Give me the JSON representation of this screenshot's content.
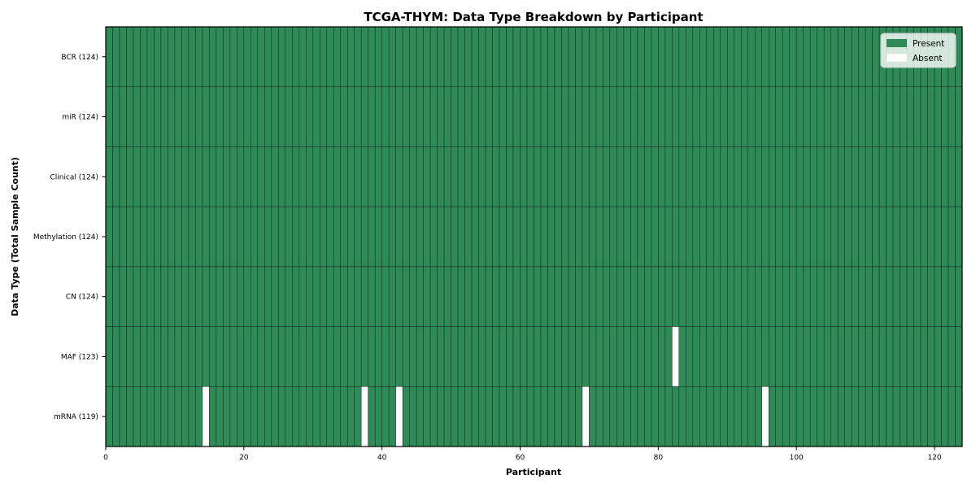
{
  "figure": {
    "kind": "matplotlib-heatmap-figure"
  },
  "chart_data": {
    "type": "heatmap",
    "title": "TCGA-THYM: Data Type Breakdown by Participant",
    "xlabel": "Participant",
    "ylabel": "Data Type (Total Sample Count)",
    "x_ticks": [
      0,
      20,
      40,
      60,
      80,
      100,
      120
    ],
    "x_range": [
      0,
      124
    ],
    "n_participants": 124,
    "rows": [
      {
        "label": "BCR (124)",
        "data_type": "BCR",
        "present_count": 124,
        "absent_participants": []
      },
      {
        "label": "miR (124)",
        "data_type": "miR",
        "present_count": 124,
        "absent_participants": []
      },
      {
        "label": "Clinical (124)",
        "data_type": "Clinical",
        "present_count": 124,
        "absent_participants": []
      },
      {
        "label": "Methylation (124)",
        "data_type": "Methylation",
        "present_count": 124,
        "absent_participants": []
      },
      {
        "label": "CN (124)",
        "data_type": "CN",
        "present_count": 124,
        "absent_participants": []
      },
      {
        "label": "MAF (123)",
        "data_type": "MAF",
        "present_count": 123,
        "absent_participants": [
          82
        ]
      },
      {
        "label": "mRNA (119)",
        "data_type": "mRNA",
        "present_count": 119,
        "absent_participants": [
          14,
          37,
          42,
          69,
          95
        ]
      }
    ],
    "legend": [
      {
        "label": "Present",
        "color": "#2e8b57"
      },
      {
        "label": "Absent",
        "color": "#ffffff"
      }
    ],
    "legend_position": "upper right",
    "grid": false,
    "colors": {
      "present": "#2e8b57",
      "absent": "#ffffff",
      "cell_edge": "#111111",
      "spine": "#000000",
      "legend_bg": "#ffffff",
      "legend_border": "#cccccc"
    }
  }
}
